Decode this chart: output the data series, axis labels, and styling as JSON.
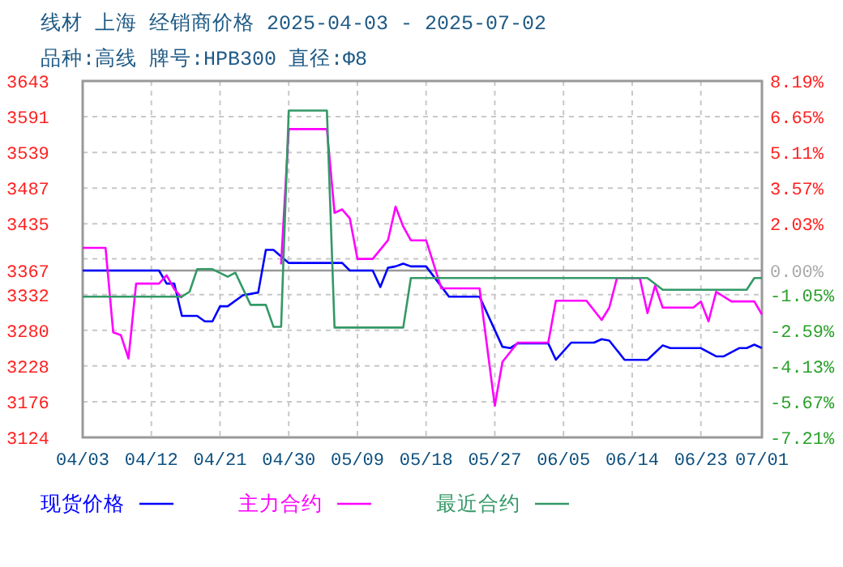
{
  "chart_data": {
    "type": "line",
    "title": "线材 上海 经销商价格 2025-04-03 - 2025-07-02",
    "subtitle": "品种:高线 牌号:HPB300 直径:Φ8",
    "xlim": [
      "--04-03",
      "--07-01"
    ],
    "xticks": [
      {
        "value": "--04-03",
        "label": "04/03"
      },
      {
        "value": "--04-12",
        "label": "04/12"
      },
      {
        "value": "--04-21",
        "label": "04/21"
      },
      {
        "value": "--04-30",
        "label": "04/30"
      },
      {
        "value": "--05-09",
        "label": "05/09"
      },
      {
        "value": "--05-18",
        "label": "05/18"
      },
      {
        "value": "--05-27",
        "label": "05/27"
      },
      {
        "value": "--06-05",
        "label": "06/05"
      },
      {
        "value": "--06-14",
        "label": "06/14"
      },
      {
        "value": "--06-23",
        "label": "06/23"
      },
      {
        "value": "--07-01",
        "label": "07/01"
      }
    ],
    "ylim": [
      3124,
      3643
    ],
    "yticks": [
      3124,
      3176,
      3228,
      3280,
      3332,
      3367,
      {
        "value": 3384,
        "label": null
      },
      3435,
      3487,
      3539,
      3591,
      3643
    ],
    "y2lim": [
      -7.21,
      8.19
    ],
    "y2ticks": [
      {
        "value": -7.21,
        "label": "-7.21%"
      },
      {
        "value": -5.67,
        "label": "-5.67%"
      },
      {
        "value": -4.13,
        "label": "-4.13%"
      },
      {
        "value": -2.59,
        "label": "-2.59%"
      },
      {
        "value": -1.05,
        "label": "-1.05%"
      },
      {
        "value": 0,
        "label": "0.00%"
      },
      {
        "value": 2.03,
        "label": "2.03%"
      },
      {
        "value": 3.57,
        "label": "3.57%"
      },
      {
        "value": 5.11,
        "label": "5.11%"
      },
      {
        "value": 6.65,
        "label": "6.65%"
      },
      {
        "value": 8.19,
        "label": "8.19%"
      }
    ],
    "ref_lines": [
      {
        "axis": "y",
        "value": 3367,
        "color": "#999999",
        "line_style": "solid"
      }
    ],
    "grid": true,
    "legend": "bottom",
    "series": [
      {
        "name": "现货价格",
        "color": "#0000ff",
        "x": [
          "--04-03",
          "--04-13",
          "--04-14",
          "--04-15",
          "--04-16",
          "--04-18",
          "--04-19",
          "--04-20",
          "--04-21",
          "--04-22",
          "--04-24",
          "--04-26",
          "--04-27",
          "--04-28",
          "--04-30",
          "--05-07",
          "--05-08",
          "--05-11",
          "--05-12",
          "--05-13",
          "--05-14",
          "--05-15",
          "--05-16",
          "--05-18",
          "--05-21",
          "--05-25",
          "--05-28",
          "--05-29",
          "--05-30",
          "--06-03",
          "--06-04",
          "--06-06",
          "--06-09",
          "--06-10",
          "--06-11",
          "--06-13",
          "--06-16",
          "--06-18",
          "--06-19",
          "--06-23",
          "--06-25",
          "--06-26",
          "--06-28",
          "--06-29",
          "--06-30",
          "--07-01"
        ],
        "values": [
          3367,
          3367,
          3348,
          3348,
          3301,
          3301,
          3293,
          3293,
          3315,
          3315,
          3331,
          3335,
          3397,
          3397,
          3378,
          3378,
          3367,
          3367,
          3343,
          3371,
          3373,
          3377,
          3373,
          3373,
          3329,
          3329,
          3256,
          3254,
          3261,
          3261,
          3237,
          3262,
          3262,
          3267,
          3265,
          3237,
          3237,
          3258,
          3254,
          3254,
          3242,
          3242,
          3254,
          3254,
          3259,
          3254
        ]
      },
      {
        "name": "主力合约",
        "color": "#ff00ff",
        "x": [
          "--04-03",
          "--04-06",
          "--04-07",
          "--04-08",
          "--04-09",
          "--04-10",
          "--04-13",
          "--04-14",
          "--04-15",
          "--04-16",
          "--04-17",
          "--04-29",
          "--04-30",
          "--05-05",
          "--05-06",
          "--05-07",
          "--05-08",
          "--05-09",
          "--05-11",
          "--05-13",
          "--05-14",
          "--05-15",
          "--05-16",
          "--05-18",
          "--05-20",
          "--05-25",
          "--05-27",
          "--05-28",
          "--05-30",
          "--06-03",
          "--06-04",
          "--06-08",
          "--06-10",
          "--06-11",
          "--06-12",
          "--06-15",
          "--06-16",
          "--06-17",
          "--06-18",
          "--06-22",
          "--06-23",
          "--06-24",
          "--06-25",
          "--06-27",
          "--06-30",
          "--07-01"
        ],
        "values": [
          3400,
          3400,
          3277,
          3273,
          3239,
          3348,
          3348,
          3360,
          3340,
          3327,
          null,
          3376,
          3573,
          3573,
          3451,
          3456,
          3443,
          3384,
          3384,
          3411,
          3460,
          3431,
          3411,
          3411,
          3341,
          3341,
          3170,
          3234,
          3262,
          3262,
          3323,
          3323,
          3295,
          3313,
          3356,
          3356,
          3305,
          3345,
          3313,
          3313,
          3322,
          3293,
          3336,
          3322,
          3322,
          3303
        ]
      },
      {
        "name": "最近合约",
        "color": "#339966",
        "x": [
          "--04-03",
          "--04-16",
          "--04-17",
          "--04-18",
          "--04-20",
          "--04-22",
          "--04-23",
          "--04-25",
          "--04-27",
          "--04-28",
          "--04-29",
          "--04-30",
          "--05-05",
          "--05-06",
          "--05-15",
          "--05-16",
          "--06-16",
          "--06-18",
          "--06-29",
          "--06-30",
          "--07-01"
        ],
        "values": [
          3329,
          3329,
          3336,
          3369,
          3369,
          3358,
          3364,
          3317,
          3317,
          3285,
          3285,
          3600,
          3600,
          3284,
          3284,
          3356,
          3356,
          3339,
          3339,
          3356,
          3356
        ]
      }
    ]
  }
}
